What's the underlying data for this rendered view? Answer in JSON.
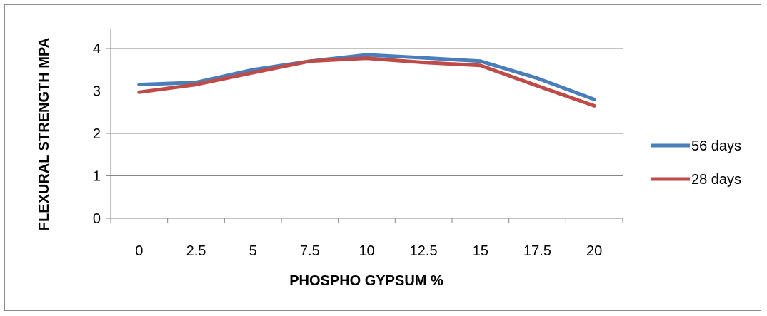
{
  "chart_data": {
    "type": "line",
    "xlabel": "PHOSPHO GYPSUM %",
    "ylabel": "FLEXURAL STRENGTH MPA",
    "categories": [
      "0",
      "2.5",
      "5",
      "7.5",
      "10",
      "12.5",
      "15",
      "17.5",
      "20"
    ],
    "ylim": [
      0,
      4
    ],
    "yticks": [
      "0",
      "1",
      "2",
      "3",
      "4"
    ],
    "grid": true,
    "legend_position": "right",
    "series": [
      {
        "name": "56 days",
        "color": "#4a7ebb",
        "values": [
          3.15,
          3.2,
          3.5,
          3.7,
          3.85,
          3.78,
          3.7,
          3.3,
          2.8
        ]
      },
      {
        "name": "28 days",
        "color": "#be4b48",
        "values": [
          2.97,
          3.15,
          3.43,
          3.7,
          3.77,
          3.67,
          3.6,
          3.12,
          2.65
        ]
      }
    ]
  }
}
